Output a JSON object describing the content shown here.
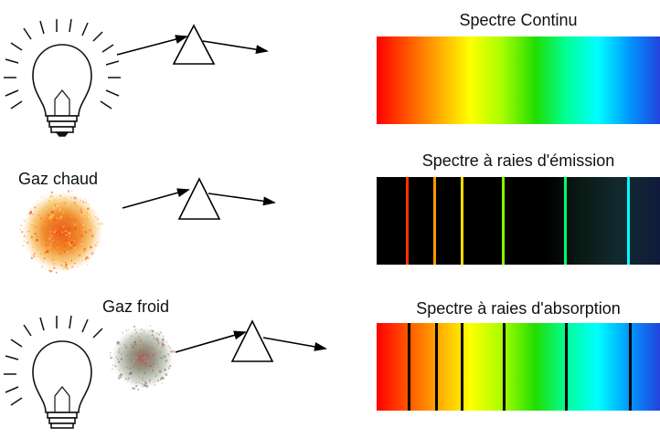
{
  "colors": {
    "rainbow": [
      "#ff0000",
      "#ff5500",
      "#ffaa00",
      "#ffff00",
      "#aaff00",
      "#22dd00",
      "#00ff99",
      "#00ffff",
      "#0099ff",
      "#2244dd"
    ],
    "emission_lines": [
      "#ff3300",
      "#ff9900",
      "#ffdd00",
      "#88ff00",
      "#00ff66",
      "#00ffff"
    ],
    "absorption_line": "#000000",
    "hot_gas": "#ff7722",
    "cold_gas": "#999999"
  },
  "sections": [
    {
      "id": "continuous",
      "source_label": "",
      "spectrum_title": "Spectre Continu",
      "spectrum_type": "continuous"
    },
    {
      "id": "emission",
      "source_label": "Gaz chaud",
      "spectrum_title": "Spectre à raies d'émission",
      "spectrum_type": "emission"
    },
    {
      "id": "absorption",
      "source_label": "Gaz froid",
      "spectrum_title": "Spectre à raies d'absorption",
      "spectrum_type": "absorption"
    }
  ],
  "icons": [
    "light-bulb-icon",
    "prism-icon",
    "arrow-icon",
    "gas-cloud-icon"
  ]
}
